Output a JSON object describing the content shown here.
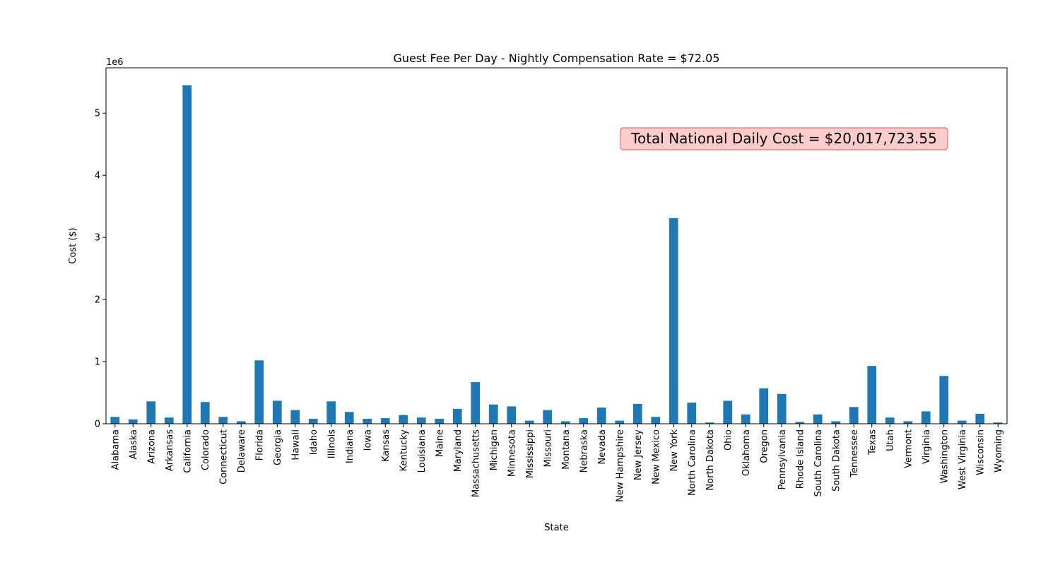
{
  "chart_data": {
    "type": "bar",
    "title": "Guest Fee Per Day - Nightly Compensation Rate = $72.05",
    "xlabel": "State",
    "ylabel": "Cost ($)",
    "y_multiplier_label": "1e6",
    "ylim": [
      0,
      5.73
    ],
    "y_ticks": [
      0,
      1,
      2,
      3,
      4,
      5
    ],
    "y_tick_labels": [
      "0",
      "1",
      "2",
      "3",
      "4",
      "5"
    ],
    "grid": false,
    "annotation": "Total National Daily Cost = $20,017,723.55",
    "bar_color": "#1f77b4",
    "annotation_face_color": "#ffcccc",
    "annotation_edge_color": "#f08080",
    "categories": [
      "Alabama",
      "Alaska",
      "Arizona",
      "Arkansas",
      "California",
      "Colorado",
      "Connecticut",
      "Delaware",
      "Florida",
      "Georgia",
      "Hawaii",
      "Idaho",
      "Illinois",
      "Indiana",
      "Iowa",
      "Kansas",
      "Kentucky",
      "Louisiana",
      "Maine",
      "Maryland",
      "Massachusetts",
      "Michigan",
      "Minnesota",
      "Mississippi",
      "Missouri",
      "Montana",
      "Nebraska",
      "Nevada",
      "New Hampshire",
      "New Jersey",
      "New Mexico",
      "New York",
      "North Carolina",
      "North Dakota",
      "Ohio",
      "Oklahoma",
      "Oregon",
      "Pennsylvania",
      "Rhode Island",
      "South Carolina",
      "South Dakota",
      "Tennessee",
      "Texas",
      "Utah",
      "Vermont",
      "Virginia",
      "Washington",
      "West Virginia",
      "Wisconsin",
      "Wyoming"
    ],
    "values": [
      0.11,
      0.07,
      0.36,
      0.1,
      5.45,
      0.35,
      0.11,
      0.04,
      1.02,
      0.37,
      0.22,
      0.08,
      0.36,
      0.19,
      0.08,
      0.09,
      0.14,
      0.1,
      0.08,
      0.24,
      0.67,
      0.31,
      0.28,
      0.05,
      0.22,
      0.04,
      0.09,
      0.26,
      0.05,
      0.32,
      0.11,
      3.31,
      0.34,
      0.02,
      0.37,
      0.15,
      0.57,
      0.48,
      0.03,
      0.15,
      0.04,
      0.27,
      0.93,
      0.1,
      0.04,
      0.2,
      0.77,
      0.05,
      0.16,
      0.02
    ]
  }
}
